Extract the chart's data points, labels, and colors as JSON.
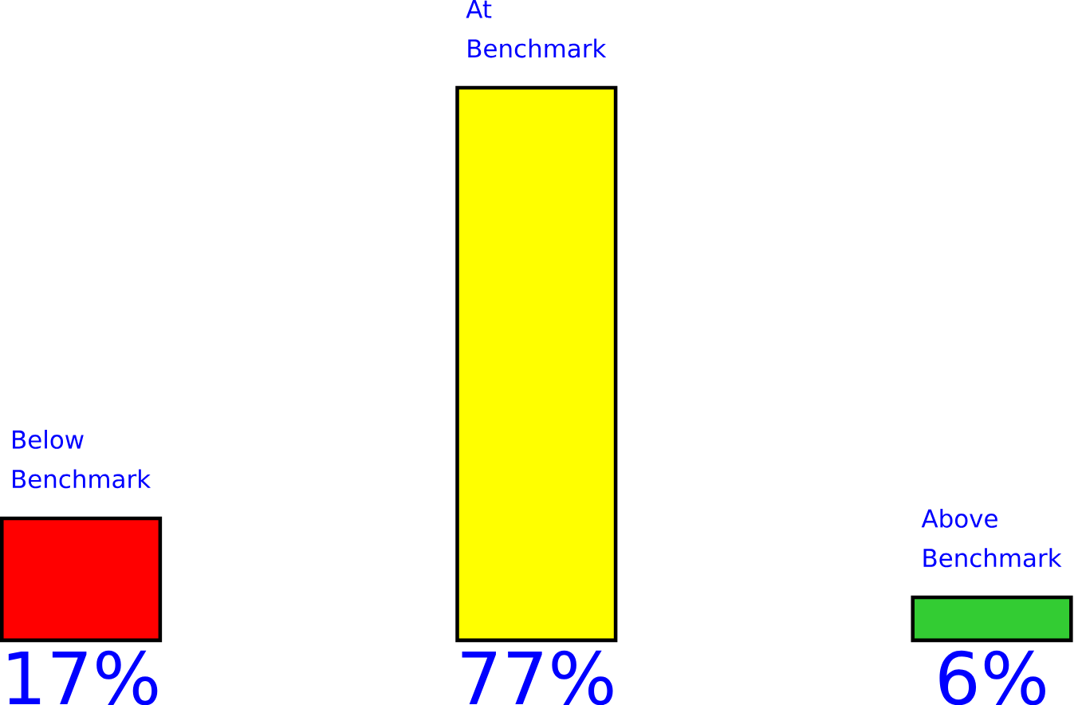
{
  "chart_data": {
    "type": "bar",
    "categories": [
      "Below Benchmark",
      "At Benchmark",
      "Above Benchmark"
    ],
    "values": [
      17,
      77,
      6
    ],
    "colors": [
      "#ff0000",
      "#ffff00",
      "#33cc33"
    ],
    "value_labels": [
      "17%",
      "77%",
      "6%"
    ]
  }
}
